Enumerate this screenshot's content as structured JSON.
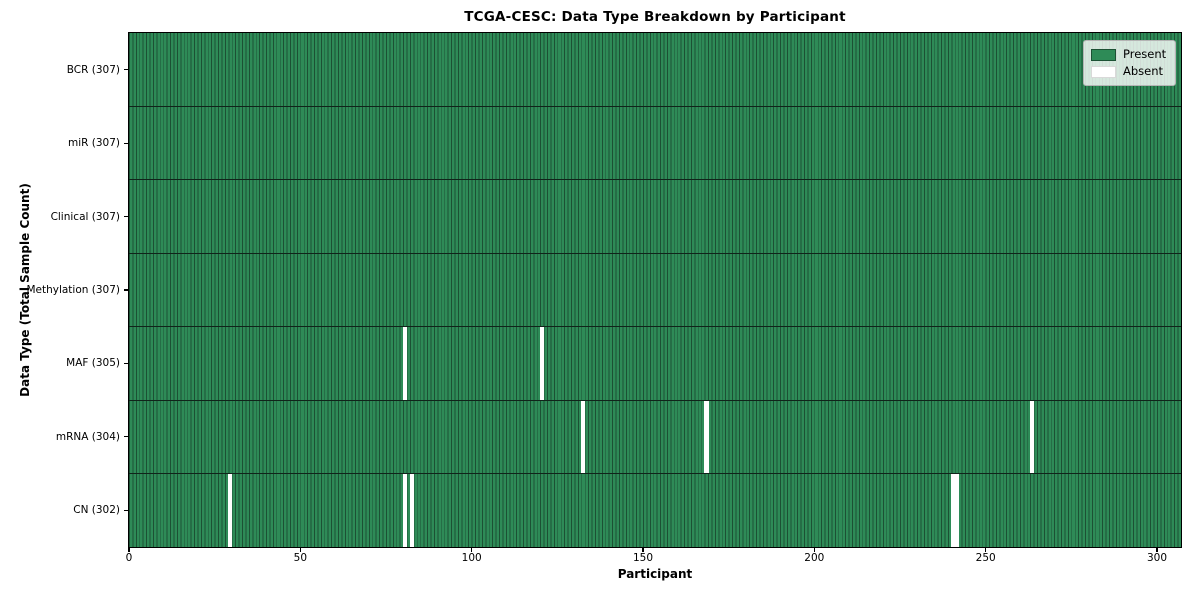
{
  "title": "TCGA-CESC: Data Type Breakdown by Participant",
  "legend": {
    "present_label": "Present",
    "absent_label": "Absent"
  },
  "chart_data": {
    "type": "heatmap",
    "title": "TCGA-CESC: Data Type Breakdown by Participant",
    "xlabel": "Participant",
    "ylabel": "Data Type (Total Sample Count)",
    "x_ticks": [
      0,
      50,
      100,
      150,
      200,
      250,
      300
    ],
    "x_range": [
      0,
      307
    ],
    "n_participants": 307,
    "grid": false,
    "legend_position": "upper right",
    "legend_entries": [
      {
        "label": "Present",
        "color": "#2e8b57"
      },
      {
        "label": "Absent",
        "color": "#ffffff"
      }
    ],
    "rows": [
      {
        "label": "BCR (307)",
        "data_type": "BCR",
        "total": 307,
        "absent_participants": []
      },
      {
        "label": "miR (307)",
        "data_type": "miR",
        "total": 307,
        "absent_participants": []
      },
      {
        "label": "Clinical (307)",
        "data_type": "Clinical",
        "total": 307,
        "absent_participants": []
      },
      {
        "label": "Methylation (307)",
        "data_type": "Methylation",
        "total": 307,
        "absent_participants": []
      },
      {
        "label": "MAF (305)",
        "data_type": "MAF",
        "total": 305,
        "absent_participants": [
          80,
          120
        ]
      },
      {
        "label": "mRNA (304)",
        "data_type": "mRNA",
        "total": 304,
        "absent_participants": [
          132,
          168,
          263
        ]
      },
      {
        "label": "CN (302)",
        "data_type": "CN",
        "total": 302,
        "absent_participants": [
          29,
          80,
          82,
          240,
          241
        ]
      }
    ],
    "colors": {
      "present": "#2e8b57",
      "absent": "#ffffff",
      "cell_edge": "#1c5134",
      "row_separator": "#10241a",
      "spine": "#000000"
    }
  }
}
